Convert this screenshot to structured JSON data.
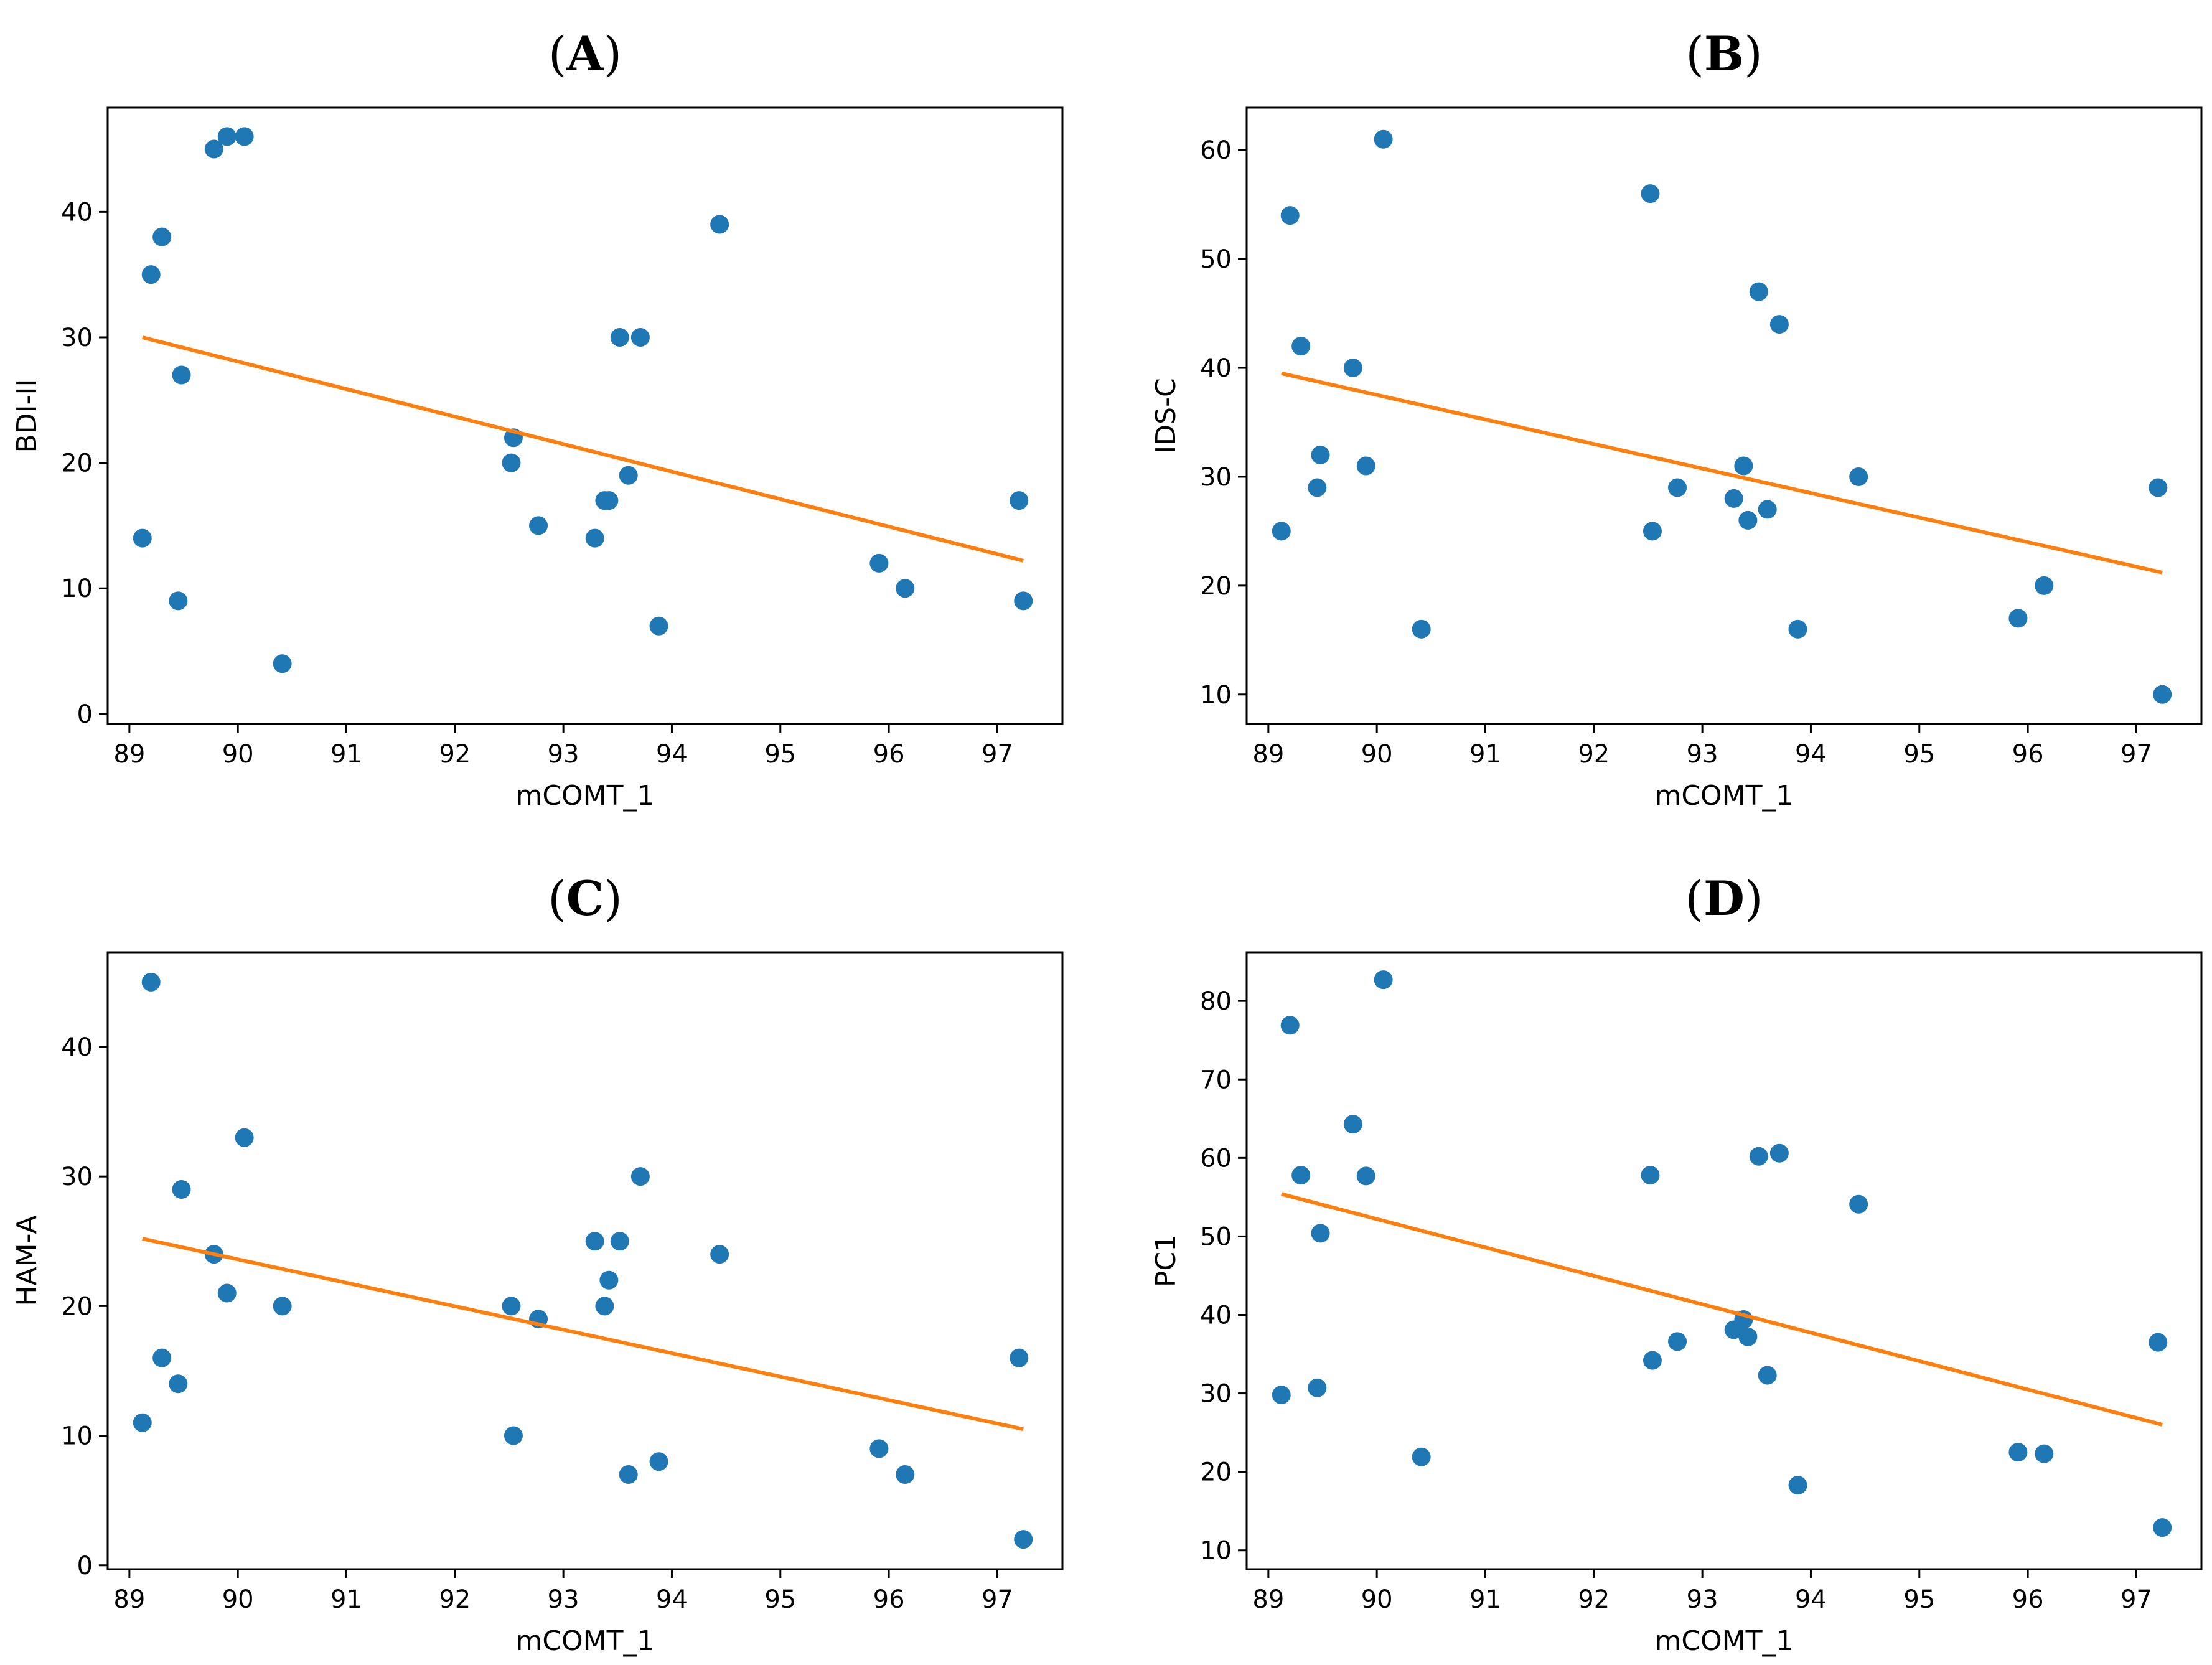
{
  "figure": {
    "colors": {
      "points": "#1f77b4",
      "fit": "#ff7f0e",
      "axes": "#000000",
      "background": "#ffffff"
    }
  },
  "chart_data": [
    {
      "id": "A",
      "type": "scatter",
      "title_letter": "A",
      "xlabel": "mCOMT_1",
      "ylabel": "BDI-II",
      "xlim": [
        88.8,
        97.6
      ],
      "ylim": [
        -0.8,
        48.3
      ],
      "xticks": [
        89,
        90,
        91,
        92,
        93,
        94,
        95,
        96,
        97
      ],
      "yticks": [
        0,
        10,
        20,
        30,
        40
      ],
      "points": [
        [
          89.12,
          14
        ],
        [
          89.2,
          35
        ],
        [
          89.3,
          38
        ],
        [
          89.45,
          9
        ],
        [
          89.48,
          27
        ],
        [
          89.78,
          45
        ],
        [
          89.9,
          46
        ],
        [
          90.06,
          46
        ],
        [
          90.41,
          4
        ],
        [
          92.52,
          20
        ],
        [
          92.54,
          22
        ],
        [
          92.77,
          15
        ],
        [
          93.29,
          14
        ],
        [
          93.38,
          17
        ],
        [
          93.42,
          17
        ],
        [
          93.52,
          30
        ],
        [
          93.6,
          19
        ],
        [
          93.71,
          30
        ],
        [
          93.88,
          7
        ],
        [
          94.44,
          39
        ],
        [
          95.91,
          12
        ],
        [
          96.15,
          10
        ],
        [
          97.2,
          17
        ],
        [
          97.24,
          9
        ]
      ],
      "fit": {
        "x": [
          89.12,
          97.24
        ],
        "y": [
          30.0,
          12.2
        ]
      }
    },
    {
      "id": "B",
      "type": "scatter",
      "title_letter": "B",
      "xlabel": "mCOMT_1",
      "ylabel": "IDS-C",
      "xlim": [
        88.8,
        97.6
      ],
      "ylim": [
        7.3,
        63.9
      ],
      "xticks": [
        89,
        90,
        91,
        92,
        93,
        94,
        95,
        96,
        97
      ],
      "yticks": [
        10,
        20,
        30,
        40,
        50,
        60
      ],
      "points": [
        [
          89.12,
          25
        ],
        [
          89.2,
          54
        ],
        [
          89.3,
          42
        ],
        [
          89.45,
          29
        ],
        [
          89.48,
          32
        ],
        [
          89.78,
          40
        ],
        [
          89.9,
          31
        ],
        [
          90.06,
          61
        ],
        [
          90.41,
          16
        ],
        [
          92.52,
          56
        ],
        [
          92.54,
          25
        ],
        [
          92.77,
          29
        ],
        [
          93.29,
          28
        ],
        [
          93.38,
          31
        ],
        [
          93.42,
          26
        ],
        [
          93.52,
          47
        ],
        [
          93.6,
          27
        ],
        [
          93.71,
          44
        ],
        [
          93.88,
          16
        ],
        [
          94.44,
          30
        ],
        [
          95.91,
          17
        ],
        [
          96.15,
          20
        ],
        [
          97.2,
          29
        ],
        [
          97.24,
          10
        ]
      ],
      "fit": {
        "x": [
          89.12,
          97.24
        ],
        "y": [
          39.5,
          21.2
        ]
      }
    },
    {
      "id": "C",
      "type": "scatter",
      "title_letter": "C",
      "xlabel": "mCOMT_1",
      "ylabel": "HAM-A",
      "xlim": [
        88.8,
        97.6
      ],
      "ylim": [
        -0.3,
        47.3
      ],
      "xticks": [
        89,
        90,
        91,
        92,
        93,
        94,
        95,
        96,
        97
      ],
      "yticks": [
        0,
        10,
        20,
        30,
        40
      ],
      "points": [
        [
          89.12,
          11
        ],
        [
          89.2,
          45
        ],
        [
          89.3,
          16
        ],
        [
          89.45,
          14
        ],
        [
          89.48,
          29
        ],
        [
          89.78,
          24
        ],
        [
          89.9,
          21
        ],
        [
          90.06,
          33
        ],
        [
          90.41,
          20
        ],
        [
          92.52,
          20
        ],
        [
          92.54,
          10
        ],
        [
          92.77,
          19
        ],
        [
          93.29,
          25
        ],
        [
          93.38,
          20
        ],
        [
          93.42,
          22
        ],
        [
          93.52,
          25
        ],
        [
          93.6,
          7
        ],
        [
          93.71,
          30
        ],
        [
          93.88,
          8
        ],
        [
          94.44,
          24
        ],
        [
          95.91,
          9
        ],
        [
          96.15,
          7
        ],
        [
          97.2,
          16
        ],
        [
          97.24,
          2
        ]
      ],
      "fit": {
        "x": [
          89.12,
          97.24
        ],
        "y": [
          25.2,
          10.5
        ]
      }
    },
    {
      "id": "D",
      "type": "scatter",
      "title_letter": "D",
      "xlabel": "mCOMT_1",
      "ylabel": "PC1",
      "xlim": [
        88.8,
        97.6
      ],
      "ylim": [
        7.6,
        86.2
      ],
      "xticks": [
        89,
        90,
        91,
        92,
        93,
        94,
        95,
        96,
        97
      ],
      "yticks": [
        10,
        20,
        30,
        40,
        50,
        60,
        70,
        80
      ],
      "points": [
        [
          89.12,
          29.8
        ],
        [
          89.2,
          76.9
        ],
        [
          89.3,
          57.8
        ],
        [
          89.45,
          30.7
        ],
        [
          89.48,
          50.4
        ],
        [
          89.78,
          64.3
        ],
        [
          89.9,
          57.7
        ],
        [
          90.06,
          82.7
        ],
        [
          90.41,
          21.9
        ],
        [
          92.52,
          57.8
        ],
        [
          92.54,
          34.2
        ],
        [
          92.77,
          36.6
        ],
        [
          93.29,
          38.1
        ],
        [
          93.38,
          39.4
        ],
        [
          93.42,
          37.2
        ],
        [
          93.52,
          60.2
        ],
        [
          93.6,
          32.3
        ],
        [
          93.71,
          60.6
        ],
        [
          93.88,
          18.3
        ],
        [
          94.44,
          54.1
        ],
        [
          95.91,
          22.5
        ],
        [
          96.15,
          22.3
        ],
        [
          97.2,
          36.5
        ],
        [
          97.24,
          12.9
        ]
      ],
      "fit": {
        "x": [
          89.12,
          97.24
        ],
        "y": [
          55.4,
          26.0
        ]
      }
    }
  ]
}
